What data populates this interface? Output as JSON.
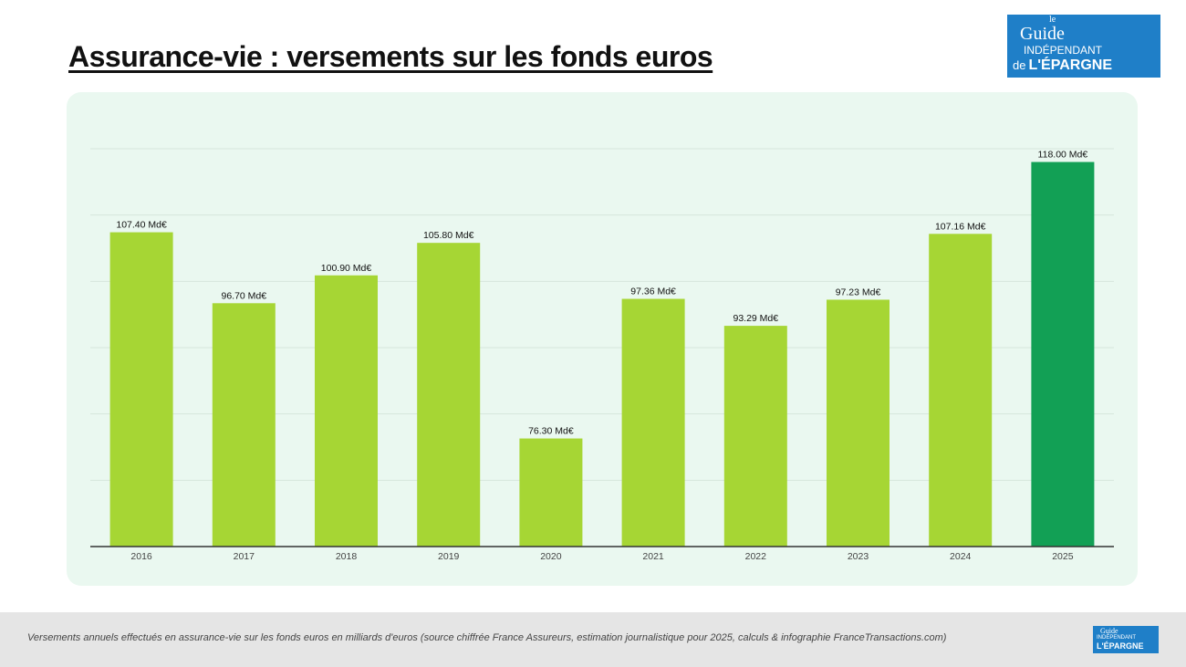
{
  "title": "Assurance-vie : versements sur les fonds euros",
  "logo": {
    "line1": "le",
    "line2": "Guide",
    "line3": "INDÉPENDANT",
    "line4": "de",
    "line5": "L'ÉPARGNE",
    "site": "FranceTransactions.com"
  },
  "footer": {
    "caption": "Versements annuels effectués en assurance-vie sur les fonds euros en milliards d'euros (source chiffrée France Assureurs, estimation journalistique pour 2025, calculs & infographie FranceTransactions.com)"
  },
  "chart_data": {
    "type": "bar",
    "categories": [
      "2016",
      "2017",
      "2018",
      "2019",
      "2020",
      "2021",
      "2022",
      "2023",
      "2024",
      "2025"
    ],
    "values": [
      107.4,
      96.7,
      100.9,
      105.8,
      76.3,
      97.36,
      93.29,
      97.23,
      107.16,
      118.0
    ],
    "data_labels": [
      "107.40 Md€",
      "96.70 Md€",
      "100.90 Md€",
      "105.80 Md€",
      "76.30 Md€",
      "97.36 Md€",
      "93.29 Md€",
      "97.23 Md€",
      "107.16 Md€",
      "118.00 Md€"
    ],
    "ylim": [
      60,
      120
    ],
    "grid": true,
    "colors": {
      "default": "#a6d634",
      "highlight": "#12a055",
      "highlight_category": "2025"
    }
  }
}
